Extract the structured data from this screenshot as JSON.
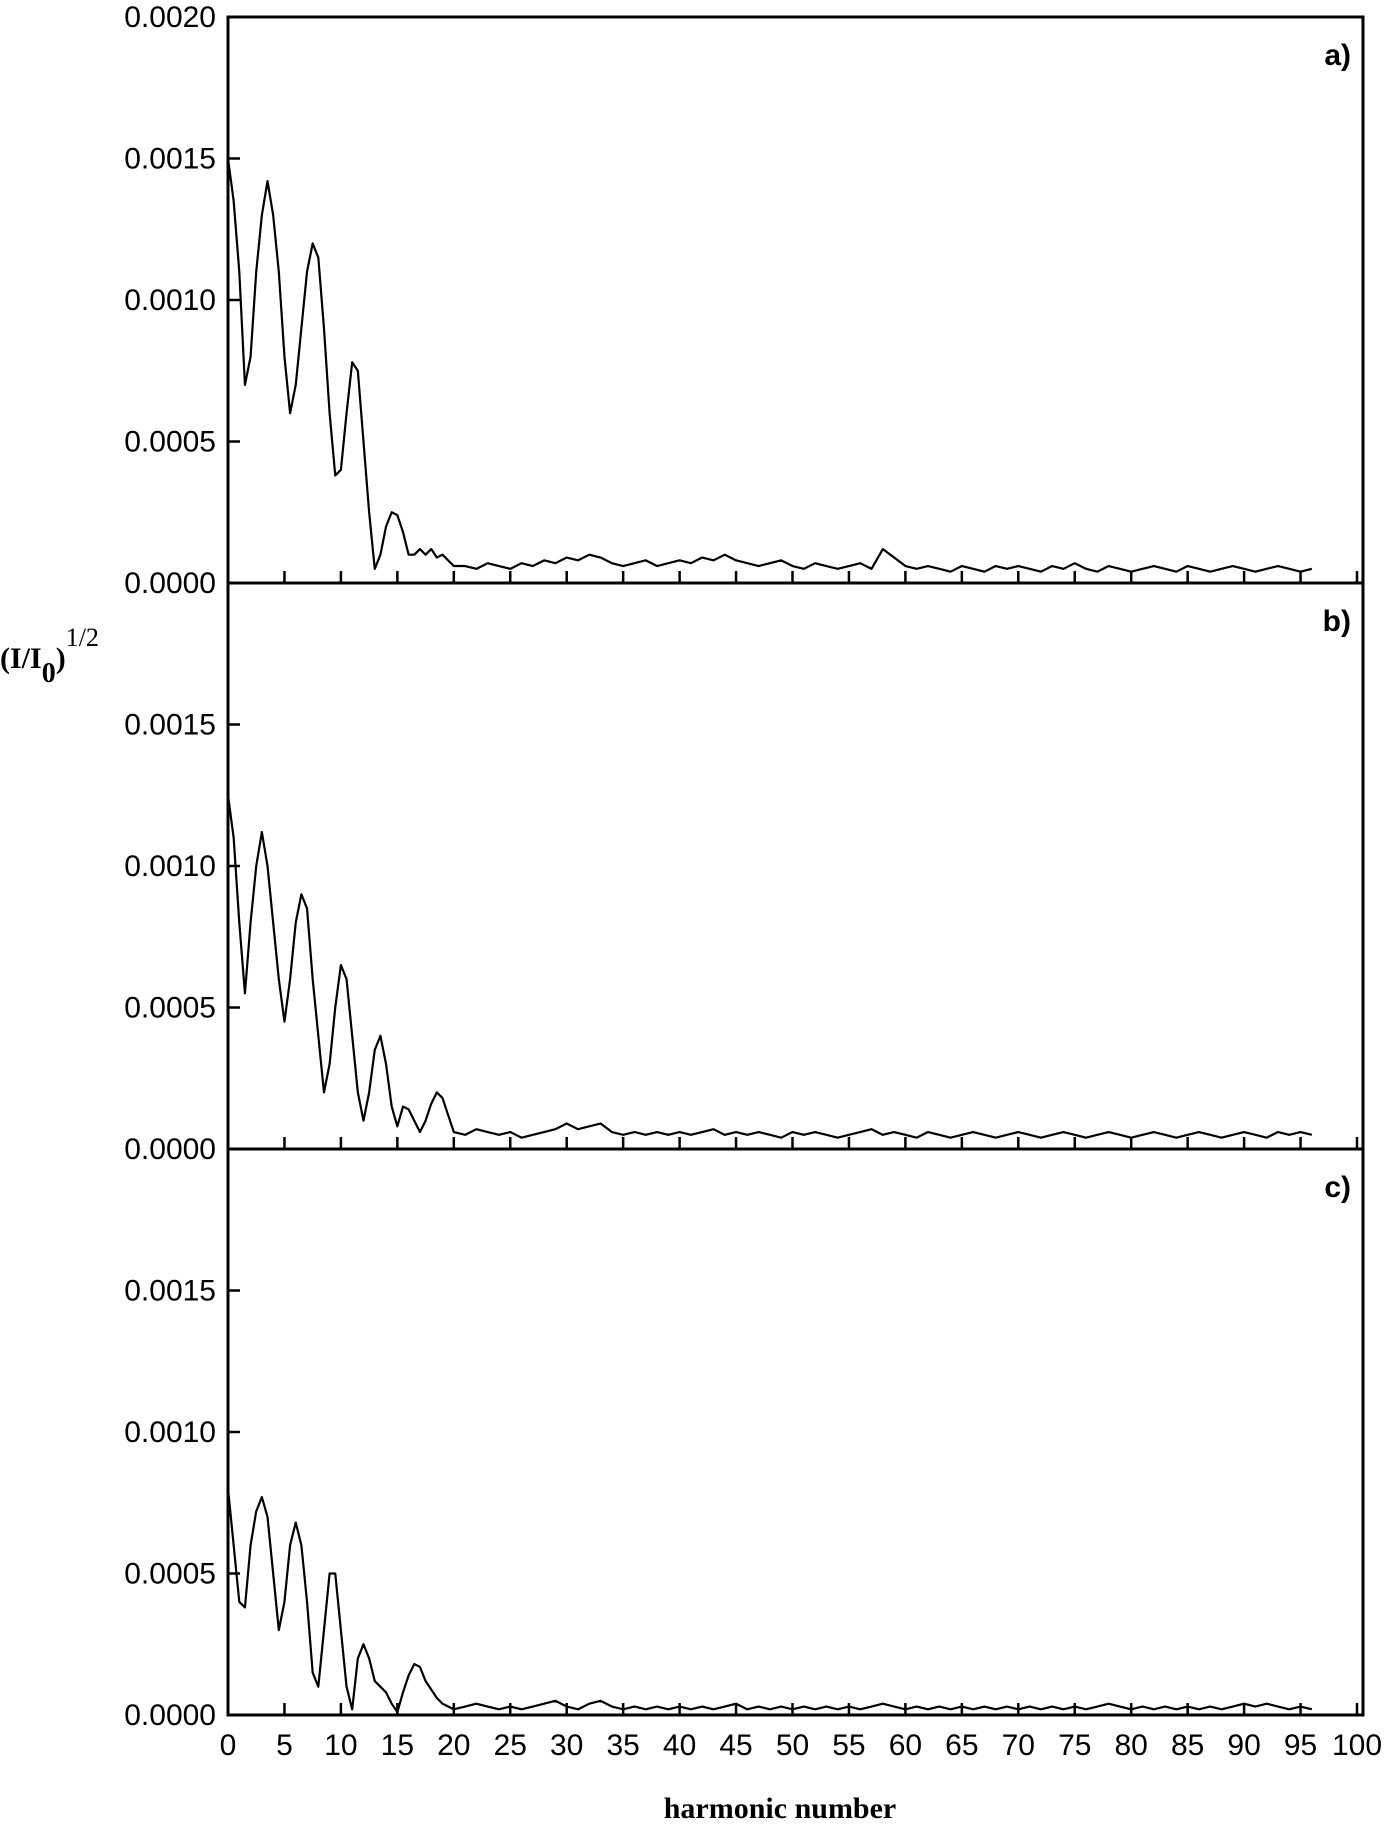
{
  "chart_data": [
    {
      "type": "line",
      "label": "a)",
      "color": "#000000",
      "xlim": [
        0,
        100
      ],
      "ylim": [
        0,
        0.002
      ],
      "yticks": [
        {
          "value": 0,
          "label": "0.0000"
        },
        {
          "value": 0.0005,
          "label": "0.0005"
        },
        {
          "value": 0.001,
          "label": "0.0010"
        },
        {
          "value": 0.0015,
          "label": "0.0015"
        },
        {
          "value": 0.002,
          "label": "0.0020"
        }
      ],
      "x": [
        0,
        0.5,
        1,
        1.5,
        2,
        2.5,
        3,
        3.5,
        4,
        4.5,
        5,
        5.5,
        6,
        6.5,
        7,
        7.5,
        8,
        8.5,
        9,
        9.5,
        10,
        10.5,
        11,
        11.5,
        12,
        12.5,
        13,
        13.5,
        14,
        14.5,
        15,
        15.5,
        16,
        16.5,
        17,
        17.5,
        18,
        18.5,
        19,
        19.5,
        20,
        21,
        22,
        23,
        24,
        25,
        26,
        27,
        28,
        29,
        30,
        31,
        32,
        33,
        34,
        35,
        36,
        37,
        38,
        39,
        40,
        41,
        42,
        43,
        44,
        45,
        46,
        47,
        48,
        49,
        50,
        51,
        52,
        53,
        54,
        55,
        56,
        57,
        58,
        59,
        60,
        61,
        62,
        63,
        64,
        65,
        66,
        67,
        68,
        69,
        70,
        71,
        72,
        73,
        74,
        75,
        76,
        77,
        78,
        79,
        80,
        81,
        82,
        83,
        84,
        85,
        86,
        87,
        88,
        89,
        90,
        91,
        92,
        93,
        94,
        95,
        96
      ],
      "values": [
        0.0015,
        0.00135,
        0.0011,
        0.0007,
        0.0008,
        0.0011,
        0.0013,
        0.00142,
        0.0013,
        0.0011,
        0.0008,
        0.0006,
        0.0007,
        0.0009,
        0.0011,
        0.0012,
        0.00115,
        0.0009,
        0.0006,
        0.00038,
        0.0004,
        0.0006,
        0.00078,
        0.00075,
        0.0005,
        0.00025,
        5e-05,
        0.0001,
        0.0002,
        0.00025,
        0.00024,
        0.00018,
        0.0001,
        0.0001,
        0.00012,
        0.0001,
        0.00012,
        9e-05,
        0.0001,
        8e-05,
        6e-05,
        6e-05,
        5e-05,
        7e-05,
        6e-05,
        5e-05,
        7e-05,
        6e-05,
        8e-05,
        7e-05,
        9e-05,
        8e-05,
        0.0001,
        9e-05,
        7e-05,
        6e-05,
        7e-05,
        8e-05,
        6e-05,
        7e-05,
        8e-05,
        7e-05,
        9e-05,
        8e-05,
        0.0001,
        8e-05,
        7e-05,
        6e-05,
        7e-05,
        8e-05,
        6e-05,
        5e-05,
        7e-05,
        6e-05,
        5e-05,
        6e-05,
        7e-05,
        5e-05,
        0.00012,
        9e-05,
        6e-05,
        5e-05,
        6e-05,
        5e-05,
        4e-05,
        6e-05,
        5e-05,
        4e-05,
        6e-05,
        5e-05,
        6e-05,
        5e-05,
        4e-05,
        6e-05,
        5e-05,
        7e-05,
        5e-05,
        4e-05,
        6e-05,
        5e-05,
        4e-05,
        5e-05,
        6e-05,
        5e-05,
        4e-05,
        6e-05,
        5e-05,
        4e-05,
        5e-05,
        6e-05,
        5e-05,
        4e-05,
        5e-05,
        6e-05,
        5e-05,
        4e-05,
        5e-05
      ]
    },
    {
      "type": "line",
      "label": "b)",
      "color": "#000000",
      "y_label": {
        "main": "(I/I",
        "sub": "0",
        "close": ")",
        "sup": "1/2"
      },
      "xlim": [
        0,
        100
      ],
      "ylim": [
        0,
        0.002
      ],
      "yticks": [
        {
          "value": 0,
          "label": "0.0000"
        },
        {
          "value": 0.0005,
          "label": "0.0005"
        },
        {
          "value": 0.001,
          "label": "0.0010"
        },
        {
          "value": 0.0015,
          "label": "0.0015"
        }
      ],
      "x": [
        0,
        0.5,
        1,
        1.5,
        2,
        2.5,
        3,
        3.5,
        4,
        4.5,
        5,
        5.5,
        6,
        6.5,
        7,
        7.5,
        8,
        8.5,
        9,
        9.5,
        10,
        10.5,
        11,
        11.5,
        12,
        12.5,
        13,
        13.5,
        14,
        14.5,
        15,
        15.5,
        16,
        16.5,
        17,
        17.5,
        18,
        18.5,
        19,
        19.5,
        20,
        21,
        22,
        23,
        24,
        25,
        26,
        27,
        28,
        29,
        30,
        31,
        32,
        33,
        34,
        35,
        36,
        37,
        38,
        39,
        40,
        41,
        42,
        43,
        44,
        45,
        46,
        47,
        48,
        49,
        50,
        51,
        52,
        53,
        54,
        55,
        56,
        57,
        58,
        59,
        60,
        61,
        62,
        63,
        64,
        65,
        66,
        67,
        68,
        69,
        70,
        71,
        72,
        73,
        74,
        75,
        76,
        77,
        78,
        79,
        80,
        81,
        82,
        83,
        84,
        85,
        86,
        87,
        88,
        89,
        90,
        91,
        92,
        93,
        94,
        95,
        96
      ],
      "values": [
        0.00125,
        0.0011,
        0.0008,
        0.00055,
        0.0008,
        0.001,
        0.00112,
        0.001,
        0.0008,
        0.0006,
        0.00045,
        0.0006,
        0.0008,
        0.0009,
        0.00085,
        0.0006,
        0.0004,
        0.0002,
        0.0003,
        0.0005,
        0.00065,
        0.0006,
        0.0004,
        0.0002,
        0.0001,
        0.0002,
        0.00035,
        0.0004,
        0.0003,
        0.00015,
        8e-05,
        0.00015,
        0.00014,
        0.0001,
        6e-05,
        0.0001,
        0.00016,
        0.0002,
        0.00018,
        0.00012,
        6e-05,
        5e-05,
        7e-05,
        6e-05,
        5e-05,
        6e-05,
        4e-05,
        5e-05,
        6e-05,
        7e-05,
        9e-05,
        7e-05,
        8e-05,
        9e-05,
        6e-05,
        5e-05,
        6e-05,
        5e-05,
        6e-05,
        5e-05,
        6e-05,
        5e-05,
        6e-05,
        7e-05,
        5e-05,
        6e-05,
        5e-05,
        6e-05,
        5e-05,
        4e-05,
        6e-05,
        5e-05,
        6e-05,
        5e-05,
        4e-05,
        5e-05,
        6e-05,
        7e-05,
        5e-05,
        6e-05,
        5e-05,
        4e-05,
        6e-05,
        5e-05,
        4e-05,
        5e-05,
        6e-05,
        5e-05,
        4e-05,
        5e-05,
        6e-05,
        5e-05,
        4e-05,
        5e-05,
        6e-05,
        5e-05,
        4e-05,
        5e-05,
        6e-05,
        5e-05,
        4e-05,
        5e-05,
        6e-05,
        5e-05,
        4e-05,
        5e-05,
        6e-05,
        5e-05,
        4e-05,
        5e-05,
        6e-05,
        5e-05,
        4e-05,
        6e-05,
        5e-05,
        6e-05,
        5e-05
      ]
    },
    {
      "type": "line",
      "label": "c)",
      "color": "#000000",
      "x_label": "harmonic number",
      "xlim": [
        0,
        100
      ],
      "ylim": [
        0,
        0.002
      ],
      "xticks": [
        0,
        5,
        10,
        15,
        20,
        25,
        30,
        35,
        40,
        45,
        50,
        55,
        60,
        65,
        70,
        75,
        80,
        85,
        90,
        95,
        100
      ],
      "yticks": [
        {
          "value": 0,
          "label": "0.0000"
        },
        {
          "value": 0.0005,
          "label": "0.0005"
        },
        {
          "value": 0.001,
          "label": "0.0010"
        },
        {
          "value": 0.0015,
          "label": "0.0015"
        }
      ],
      "x": [
        0,
        0.5,
        1,
        1.5,
        2,
        2.5,
        3,
        3.5,
        4,
        4.5,
        5,
        5.5,
        6,
        6.5,
        7,
        7.5,
        8,
        8.5,
        9,
        9.5,
        10,
        10.5,
        11,
        11.5,
        12,
        12.5,
        13,
        13.5,
        14,
        14.5,
        15,
        15.5,
        16,
        16.5,
        17,
        17.5,
        18,
        18.5,
        19,
        19.5,
        20,
        21,
        22,
        23,
        24,
        25,
        26,
        27,
        28,
        29,
        30,
        31,
        32,
        33,
        34,
        35,
        36,
        37,
        38,
        39,
        40,
        41,
        42,
        43,
        44,
        45,
        46,
        47,
        48,
        49,
        50,
        51,
        52,
        53,
        54,
        55,
        56,
        57,
        58,
        59,
        60,
        61,
        62,
        63,
        64,
        65,
        66,
        67,
        68,
        69,
        70,
        71,
        72,
        73,
        74,
        75,
        76,
        77,
        78,
        79,
        80,
        81,
        82,
        83,
        84,
        85,
        86,
        87,
        88,
        89,
        90,
        91,
        92,
        93,
        94,
        95,
        96
      ],
      "values": [
        0.0008,
        0.0006,
        0.0004,
        0.00038,
        0.0006,
        0.00072,
        0.00077,
        0.0007,
        0.0005,
        0.0003,
        0.0004,
        0.0006,
        0.00068,
        0.0006,
        0.0004,
        0.00015,
        0.0001,
        0.0003,
        0.0005,
        0.0005,
        0.0003,
        0.0001,
        2e-05,
        0.0002,
        0.00025,
        0.0002,
        0.00012,
        0.0001,
        8e-05,
        4e-05,
        1e-05,
        8e-05,
        0.00014,
        0.00018,
        0.00017,
        0.00012,
        9e-05,
        6e-05,
        4e-05,
        3e-05,
        2e-05,
        3e-05,
        4e-05,
        3e-05,
        2e-05,
        3e-05,
        2e-05,
        3e-05,
        4e-05,
        5e-05,
        3e-05,
        2e-05,
        4e-05,
        5e-05,
        3e-05,
        2e-05,
        3e-05,
        2e-05,
        3e-05,
        2e-05,
        3e-05,
        2e-05,
        3e-05,
        2e-05,
        3e-05,
        4e-05,
        2e-05,
        3e-05,
        2e-05,
        3e-05,
        2e-05,
        3e-05,
        2e-05,
        3e-05,
        2e-05,
        3e-05,
        2e-05,
        3e-05,
        4e-05,
        3e-05,
        2e-05,
        3e-05,
        2e-05,
        3e-05,
        2e-05,
        3e-05,
        2e-05,
        3e-05,
        2e-05,
        3e-05,
        2e-05,
        3e-05,
        2e-05,
        3e-05,
        2e-05,
        3e-05,
        2e-05,
        3e-05,
        4e-05,
        3e-05,
        2e-05,
        3e-05,
        2e-05,
        3e-05,
        2e-05,
        3e-05,
        2e-05,
        3e-05,
        2e-05,
        3e-05,
        4e-05,
        3e-05,
        4e-05,
        3e-05,
        2e-05,
        3e-05,
        2e-05
      ]
    }
  ]
}
